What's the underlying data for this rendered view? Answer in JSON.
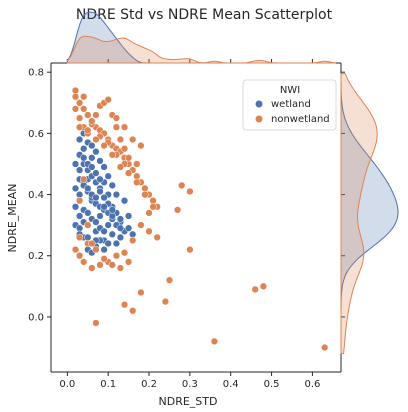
{
  "chart_data": {
    "type": "scatter",
    "title": "NDRE Std vs NDRE Mean Scatterplot",
    "xlabel": "NDRE_STD",
    "ylabel": "NDRE_MEAN",
    "xlim": [
      -0.04,
      0.67
    ],
    "ylim": [
      -0.18,
      0.83
    ],
    "xticks": [
      0.0,
      0.1,
      0.2,
      0.3,
      0.4,
      0.5,
      0.6
    ],
    "xtick_labels": [
      "0.0",
      "0.1",
      "0.2",
      "0.3",
      "0.4",
      "0.5",
      "0.6"
    ],
    "yticks": [
      0.0,
      0.2,
      0.4,
      0.6,
      0.8
    ],
    "ytick_labels": [
      "0.0",
      "0.2",
      "0.4",
      "0.6",
      "0.8"
    ],
    "grid": false,
    "legend": {
      "title": "NWI",
      "placement": "top-right",
      "entries": [
        "wetland",
        "nonwetland"
      ]
    },
    "marginals": {
      "top": "kde of NDRE_STD by NWI",
      "right": "kde of NDRE_MEAN by NWI"
    },
    "series": [
      {
        "name": "wetland",
        "color": "#4c72b0",
        "x": [
          0.02,
          0.03,
          0.03,
          0.04,
          0.04,
          0.05,
          0.05,
          0.06,
          0.06,
          0.07,
          0.07,
          0.08,
          0.08,
          0.09,
          0.09,
          0.1,
          0.1,
          0.11,
          0.11,
          0.12,
          0.12,
          0.13,
          0.13,
          0.14,
          0.03,
          0.04,
          0.05,
          0.06,
          0.07,
          0.08,
          0.09,
          0.1,
          0.11,
          0.02,
          0.03,
          0.04,
          0.05,
          0.06,
          0.07,
          0.08,
          0.09,
          0.1,
          0.12,
          0.14,
          0.15,
          0.03,
          0.04,
          0.05,
          0.06,
          0.07,
          0.08,
          0.09,
          0.1,
          0.11,
          0.12,
          0.13,
          0.02,
          0.03,
          0.04,
          0.05,
          0.06,
          0.07,
          0.08,
          0.09,
          0.1,
          0.11,
          0.02,
          0.03,
          0.04,
          0.05,
          0.06,
          0.07,
          0.08,
          0.09,
          0.03,
          0.04,
          0.05,
          0.06,
          0.07,
          0.08,
          0.04,
          0.05,
          0.06,
          0.07,
          0.09,
          0.11,
          0.13,
          0.15,
          0.16,
          0.03,
          0.05,
          0.07
        ],
        "y": [
          0.5,
          0.48,
          0.4,
          0.55,
          0.35,
          0.45,
          0.3,
          0.52,
          0.38,
          0.47,
          0.28,
          0.42,
          0.33,
          0.44,
          0.25,
          0.4,
          0.3,
          0.36,
          0.27,
          0.34,
          0.24,
          0.31,
          0.26,
          0.28,
          0.58,
          0.6,
          0.57,
          0.56,
          0.54,
          0.51,
          0.49,
          0.46,
          0.43,
          0.42,
          0.33,
          0.26,
          0.22,
          0.21,
          0.23,
          0.25,
          0.22,
          0.24,
          0.4,
          0.38,
          0.33,
          0.45,
          0.44,
          0.41,
          0.39,
          0.37,
          0.36,
          0.35,
          0.34,
          0.32,
          0.3,
          0.29,
          0.36,
          0.38,
          0.5,
          0.48,
          0.46,
          0.44,
          0.41,
          0.39,
          0.37,
          0.33,
          0.3,
          0.29,
          0.31,
          0.34,
          0.32,
          0.31,
          0.29,
          0.28,
          0.53,
          0.52,
          0.5,
          0.49,
          0.47,
          0.45,
          0.43,
          0.42,
          0.4,
          0.39,
          0.36,
          0.35,
          0.32,
          0.29,
          0.27,
          0.27,
          0.26,
          0.25
        ]
      },
      {
        "name": "nonwetland",
        "color": "#dd8452",
        "x": [
          0.02,
          0.03,
          0.04,
          0.05,
          0.06,
          0.07,
          0.08,
          0.09,
          0.1,
          0.11,
          0.12,
          0.13,
          0.14,
          0.15,
          0.16,
          0.17,
          0.18,
          0.19,
          0.2,
          0.21,
          0.22,
          0.02,
          0.03,
          0.04,
          0.05,
          0.06,
          0.07,
          0.08,
          0.09,
          0.1,
          0.11,
          0.12,
          0.13,
          0.14,
          0.15,
          0.17,
          0.02,
          0.03,
          0.04,
          0.06,
          0.08,
          0.1,
          0.12,
          0.14,
          0.16,
          0.18,
          0.2,
          0.03,
          0.05,
          0.07,
          0.09,
          0.11,
          0.13,
          0.15,
          0.02,
          0.04,
          0.06,
          0.08,
          0.1,
          0.12,
          0.14,
          0.03,
          0.05,
          0.07,
          0.09,
          0.11,
          0.13,
          0.15,
          0.17,
          0.19,
          0.21,
          0.12,
          0.14,
          0.16,
          0.18,
          0.28,
          0.3,
          0.27,
          0.2,
          0.22,
          0.3,
          0.18,
          0.24,
          0.25,
          0.36,
          0.46,
          0.48,
          0.63,
          0.07,
          0.06,
          0.14,
          0.16,
          0.04,
          0.03,
          0.05
        ],
        "y": [
          0.72,
          0.7,
          0.68,
          0.66,
          0.64,
          0.62,
          0.61,
          0.6,
          0.58,
          0.56,
          0.55,
          0.54,
          0.52,
          0.5,
          0.48,
          0.46,
          0.44,
          0.42,
          0.4,
          0.38,
          0.36,
          0.68,
          0.65,
          0.62,
          0.6,
          0.63,
          0.66,
          0.69,
          0.7,
          0.71,
          0.66,
          0.62,
          0.58,
          0.55,
          0.52,
          0.5,
          0.22,
          0.2,
          0.18,
          0.16,
          0.17,
          0.18,
          0.2,
          0.21,
          0.25,
          0.3,
          0.34,
          0.26,
          0.24,
          0.22,
          0.19,
          0.17,
          0.16,
          0.18,
          0.74,
          0.72,
          0.64,
          0.59,
          0.57,
          0.53,
          0.5,
          0.62,
          0.61,
          0.58,
          0.56,
          0.53,
          0.49,
          0.47,
          0.44,
          0.4,
          0.36,
          0.65,
          0.62,
          0.58,
          0.56,
          0.43,
          0.41,
          0.35,
          0.28,
          0.26,
          0.22,
          0.08,
          0.05,
          0.12,
          -0.08,
          0.09,
          0.1,
          -0.1,
          -0.02,
          0.24,
          0.04,
          0.02,
          0.45,
          0.38,
          0.3
        ]
      }
    ]
  }
}
